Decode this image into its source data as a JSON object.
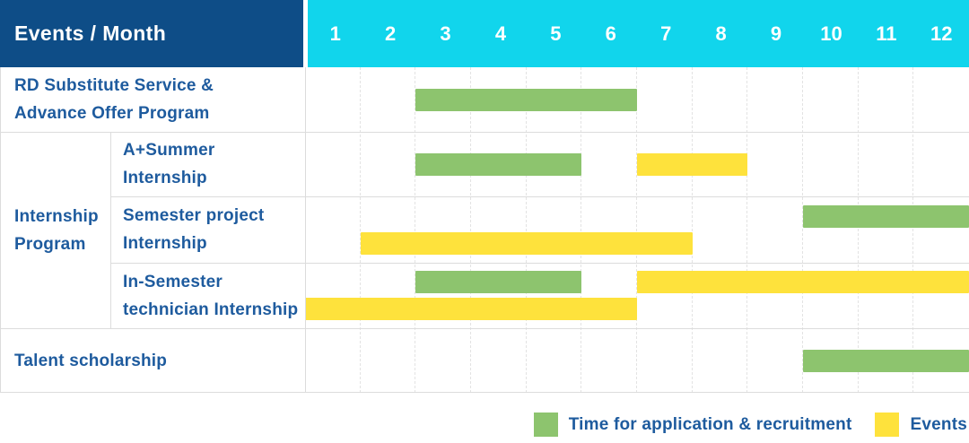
{
  "colors": {
    "header_bg": "#0e4d87",
    "months_bg": "#11d5ec",
    "label_text": "#1e5b9e",
    "grid_line": "#dcdcdc"
  },
  "chart_data": {
    "type": "bar",
    "subtype": "gantt-schedule",
    "corner_header": "Events / Month",
    "x_ticks": [
      "1",
      "2",
      "3",
      "4",
      "5",
      "6",
      "7",
      "8",
      "9",
      "10",
      "11",
      "12"
    ],
    "x_unit": "month",
    "x_range": [
      1,
      12
    ],
    "grid": true,
    "group_label": "Internship Program",
    "group_label_lines": [
      "Internship",
      "Program"
    ],
    "rows": [
      {
        "label": "RD Substitute Service & Advance Offer Program",
        "label_lines": [
          "RD Substitute Service &",
          "Advance Offer Program"
        ],
        "group": null,
        "lines": [
          [
            {
              "series": "application",
              "start": 3,
              "end": 6
            }
          ]
        ]
      },
      {
        "label": "A+Summer Internship",
        "label_lines": [
          "A+Summer",
          "Internship"
        ],
        "group": "Internship Program",
        "lines": [
          [
            {
              "series": "application",
              "start": 3,
              "end": 5
            },
            {
              "series": "events",
              "start": 7,
              "end": 8
            }
          ]
        ]
      },
      {
        "label": "Semester project Internship",
        "label_lines": [
          "Semester project",
          "Internship"
        ],
        "group": "Internship Program",
        "lines": [
          [
            {
              "series": "application",
              "start": 10,
              "end": 12
            }
          ],
          [
            {
              "series": "events",
              "start": 2,
              "end": 7
            }
          ]
        ]
      },
      {
        "label": "In-Semester technician Internship",
        "label_lines": [
          "In-Semester",
          "technician Internship"
        ],
        "group": "Internship Program",
        "lines": [
          [
            {
              "series": "application",
              "start": 3,
              "end": 5
            },
            {
              "series": "events",
              "start": 7,
              "end": 12
            }
          ],
          [
            {
              "series": "events",
              "start": 1,
              "end": 6
            }
          ]
        ]
      },
      {
        "label": "Talent scholarship",
        "label_lines": [
          "Talent scholarship"
        ],
        "group": null,
        "lines": [
          [
            {
              "series": "application",
              "start": 10,
              "end": 12
            }
          ]
        ]
      }
    ],
    "legend": [
      {
        "series": "application",
        "label": "Time for application & recruitment",
        "color": "#8dc46e"
      },
      {
        "series": "events",
        "label": "Events",
        "color": "#fee23c"
      }
    ],
    "legend_position": "bottom-right"
  }
}
